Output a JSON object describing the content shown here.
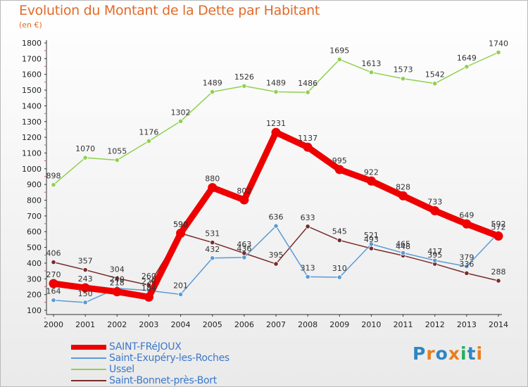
{
  "header": {
    "title": "Evolution du Montant de la Dette par Habitant",
    "unit": "(en €)"
  },
  "logo": {
    "text": "Proxiti",
    "colors": [
      "#2e86c1",
      "#e67e22",
      "#2e86c1",
      "#e67e22",
      "#27ae60",
      "#2e86c1",
      "#e67e22"
    ]
  },
  "chart_data": {
    "type": "line",
    "title": "Evolution du Montant de la Dette par Habitant",
    "ylabel": "(en €)",
    "xlabel": "",
    "ylim": [
      100,
      1800
    ],
    "yticks": [
      100,
      200,
      300,
      400,
      500,
      600,
      700,
      800,
      900,
      1000,
      1100,
      1200,
      1300,
      1400,
      1500,
      1600,
      1700,
      1800
    ],
    "x": [
      "2000",
      "2001",
      "2002",
      "2003",
      "2004",
      "2005",
      "2006",
      "2007",
      "2008",
      "2009",
      "2010",
      "2011",
      "2012",
      "2013",
      "2014"
    ],
    "grid": false,
    "legend_position": "bottom-left",
    "series": [
      {
        "name": "SAINT-FRéJOUX",
        "color": "#ee0000",
        "values": [
          270,
          243,
          218,
          184,
          590,
          880,
          802,
          1231,
          1137,
          995,
          922,
          828,
          733,
          649,
          572
        ]
      },
      {
        "name": "Saint-Exupéry-les-Roches",
        "color": "#5a9bd5",
        "values": [
          164,
          150,
          240,
          226,
          201,
          432,
          436,
          636,
          313,
          310,
          521,
          465,
          417,
          379,
          592
        ]
      },
      {
        "name": "Ussel",
        "color": "#8fd14f",
        "values": [
          898,
          1070,
          1055,
          1176,
          1302,
          1489,
          1526,
          1489,
          1486,
          1695,
          1613,
          1573,
          1542,
          1649,
          1740
        ]
      },
      {
        "name": "Saint-Bonnet-près-Bort",
        "color": "#7a2a2a",
        "values": [
          406,
          357,
          304,
          260,
          590,
          531,
          463,
          395,
          633,
          545,
          493,
          448,
          395,
          336,
          288
        ]
      }
    ]
  }
}
